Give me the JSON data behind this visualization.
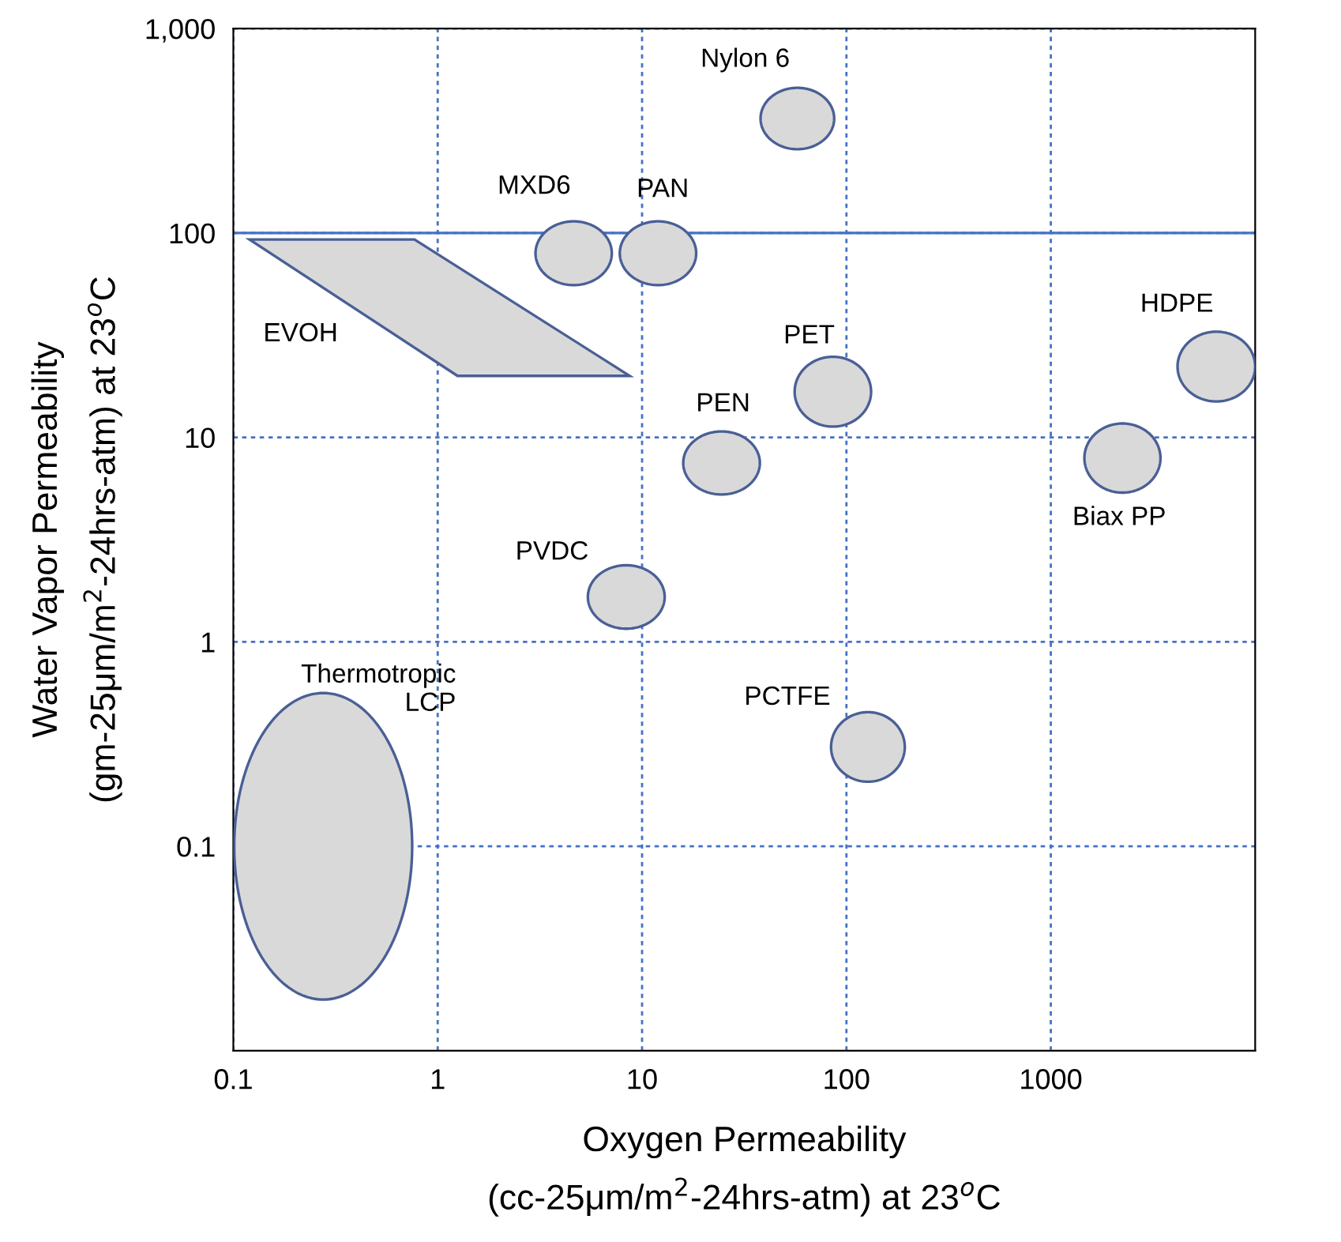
{
  "chart_data": {
    "type": "area",
    "xlabel": "Oxygen Permeability\n(cc-25μm/m$^{2}$-24hrs-atm) at 23$^{o}$C",
    "ylabel": "Water Vapor Permeability\n(gm-25μm/m$^{2}$-24hrs-atm) at 23$^{o}$C",
    "log": "xy",
    "xlim": [
      0.1,
      10000
    ],
    "ylim": [
      0.01,
      1000
    ],
    "xticks": [
      0.1,
      1,
      10,
      100,
      1000
    ],
    "yticks": [
      0.1,
      1,
      10,
      100,
      {
        "value": 1000,
        "label": "1,000"
      }
    ],
    "grid": true,
    "series": [
      {
        "name": "Nylon 6",
        "color": "#d9d9d9",
        "x": [
          87.1,
          77.1,
          57.5,
          43.0,
          38.0,
          43.0,
          57.5,
          77.1
        ],
        "values": [
          363,
          463,
          513,
          463,
          363,
          284,
          257,
          284
        ]
      },
      {
        "name": "MXD6",
        "color": "#d9d9d9",
        "x": [
          7.11,
          6.27,
          4.62,
          3.41,
          3.01,
          3.41,
          4.62,
          6.27
        ],
        "values": [
          79.4,
          102,
          114,
          102,
          79.4,
          61.7,
          55.6,
          61.7
        ]
      },
      {
        "name": "PAN",
        "color": "#d9d9d9",
        "x": [
          18.4,
          16.2,
          12.0,
          8.83,
          7.78,
          8.83,
          12.0,
          16.2
        ],
        "values": [
          79.4,
          102,
          114,
          102,
          79.4,
          61.7,
          55.6,
          61.7
        ]
      },
      {
        "name": "EVOH",
        "color": "#d9d9d9",
        "x": [
          0.12,
          0.77,
          8.7,
          1.25
        ],
        "values": [
          93,
          93,
          20,
          20
        ]
      },
      {
        "name": "PET",
        "color": "#d9d9d9",
        "x": [
          132,
          116,
          85.9,
          63.4,
          55.8,
          63.4,
          85.9,
          116
        ],
        "values": [
          16.7,
          22.1,
          24.8,
          22.1,
          16.7,
          12.7,
          11.3,
          12.7
        ]
      },
      {
        "name": "PEN",
        "color": "#d9d9d9",
        "x": [
          37.7,
          33.2,
          24.5,
          18.1,
          15.9,
          18.1,
          24.5,
          33.2
        ],
        "values": [
          7.52,
          9.68,
          10.7,
          9.68,
          7.52,
          5.83,
          5.26,
          5.83
        ]
      },
      {
        "name": "PVDC",
        "color": "#d9d9d9",
        "x": [
          12.9,
          12.4,
          11.3,
          9.86,
          8.36,
          7.08,
          6.17,
          5.61,
          5.43,
          5.61,
          6.17,
          7.08,
          8.36,
          9.86,
          11.3,
          12.4
        ],
        "values": [
          1.66,
          1.9,
          2.14,
          2.31,
          2.37,
          2.31,
          2.14,
          1.9,
          1.66,
          1.45,
          1.29,
          1.19,
          1.16,
          1.19,
          1.29,
          1.45
        ]
      },
      {
        "name": "Thermotropic\nLCP",
        "color": "#d9d9d9",
        "x": [
          0.75,
          0.695,
          0.56,
          0.405,
          0.275,
          0.1875,
          0.1355,
          0.109,
          0.101,
          0.109,
          0.1355,
          0.1875,
          0.275,
          0.405,
          0.56,
          0.695
        ],
        "values": [
          0.1,
          0.194,
          0.339,
          0.493,
          0.562,
          0.493,
          0.339,
          0.194,
          0.1,
          0.0516,
          0.0295,
          0.0203,
          0.0178,
          0.0203,
          0.0295,
          0.0516
        ]
      },
      {
        "name": "PCTFE",
        "color": "#d9d9d9",
        "x": [
          193,
          171,
          127,
          95.1,
          84.1,
          95.1,
          127,
          171
        ],
        "values": [
          0.306,
          0.404,
          0.453,
          0.404,
          0.306,
          0.232,
          0.207,
          0.232
        ]
      },
      {
        "name": "HDPE",
        "color": "#d9d9d9",
        "x": [
          10000,
          8790,
          6460,
          4740,
          4170,
          4740,
          6460,
          8790
        ],
        "values": [
          22.2,
          29.3,
          32.9,
          29.3,
          22.2,
          16.9,
          15.0,
          16.9
        ]
      },
      {
        "name": "Biax PP",
        "color": "#d9d9d9",
        "x": [
          3440,
          3030,
          2240,
          1650,
          1460,
          1650,
          2240,
          3030
        ],
        "values": [
          7.94,
          10.5,
          11.7,
          10.5,
          7.94,
          6.03,
          5.37,
          6.03
        ]
      }
    ],
    "ref_lines": [
      {
        "axis": "y",
        "value": 100,
        "color": "#4472c4",
        "line_style": "solid"
      }
    ]
  }
}
